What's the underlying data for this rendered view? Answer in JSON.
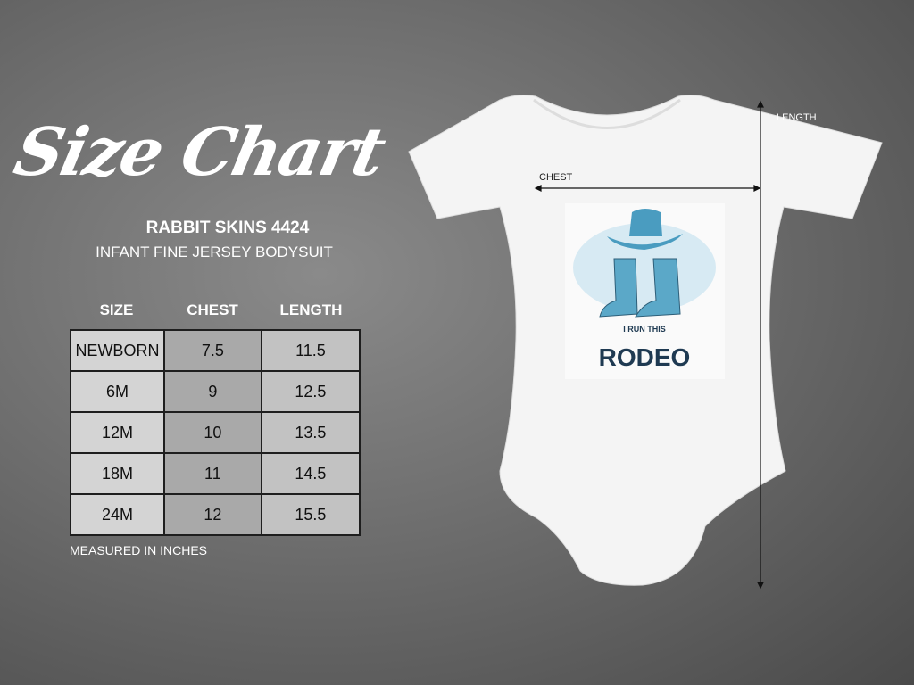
{
  "title": "Size Chart",
  "brand": "RABBIT SKINS 4424",
  "product": "INFANT FINE JERSEY BODYSUIT",
  "table": {
    "headers": [
      "SIZE",
      "CHEST",
      "LENGTH"
    ],
    "rows": [
      [
        "NEWBORN",
        "7.5",
        "11.5"
      ],
      [
        "6M",
        "9",
        "12.5"
      ],
      [
        "12M",
        "10",
        "13.5"
      ],
      [
        "18M",
        "11",
        "14.5"
      ],
      [
        "24M",
        "12",
        "15.5"
      ]
    ]
  },
  "note": "MEASURED IN INCHES",
  "garment": {
    "chest_label": "CHEST",
    "length_label": "LENGTH",
    "color": "#f4f4f4"
  },
  "design": {
    "line1": "I RUN THIS",
    "line2": "RODEO",
    "accent": "#4a9cc0",
    "text_color": "#1f3a52"
  }
}
